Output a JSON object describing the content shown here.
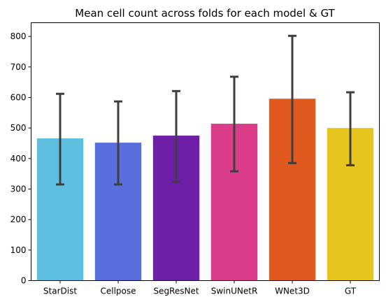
{
  "chart_data": {
    "type": "bar",
    "title": "Mean cell count across folds for each model & GT",
    "xlabel": "",
    "ylabel": "",
    "ylim": [
      0,
      845
    ],
    "yticks": [
      0,
      100,
      200,
      300,
      400,
      500,
      600,
      700,
      800
    ],
    "categories": [
      "StarDist",
      "Cellpose",
      "SegResNet",
      "SwinUNetR",
      "WNet3D",
      "GT"
    ],
    "values": [
      466,
      452,
      475,
      514,
      596,
      500
    ],
    "error_low": [
      315,
      315,
      323,
      358,
      385,
      378
    ],
    "error_high": [
      612,
      587,
      621,
      668,
      802,
      617
    ],
    "colors": [
      "#5ebfe1",
      "#5a6fde",
      "#6d1fa8",
      "#dc3d8b",
      "#e05a1f",
      "#e6c51e"
    ],
    "grid": false,
    "legend": "none"
  }
}
